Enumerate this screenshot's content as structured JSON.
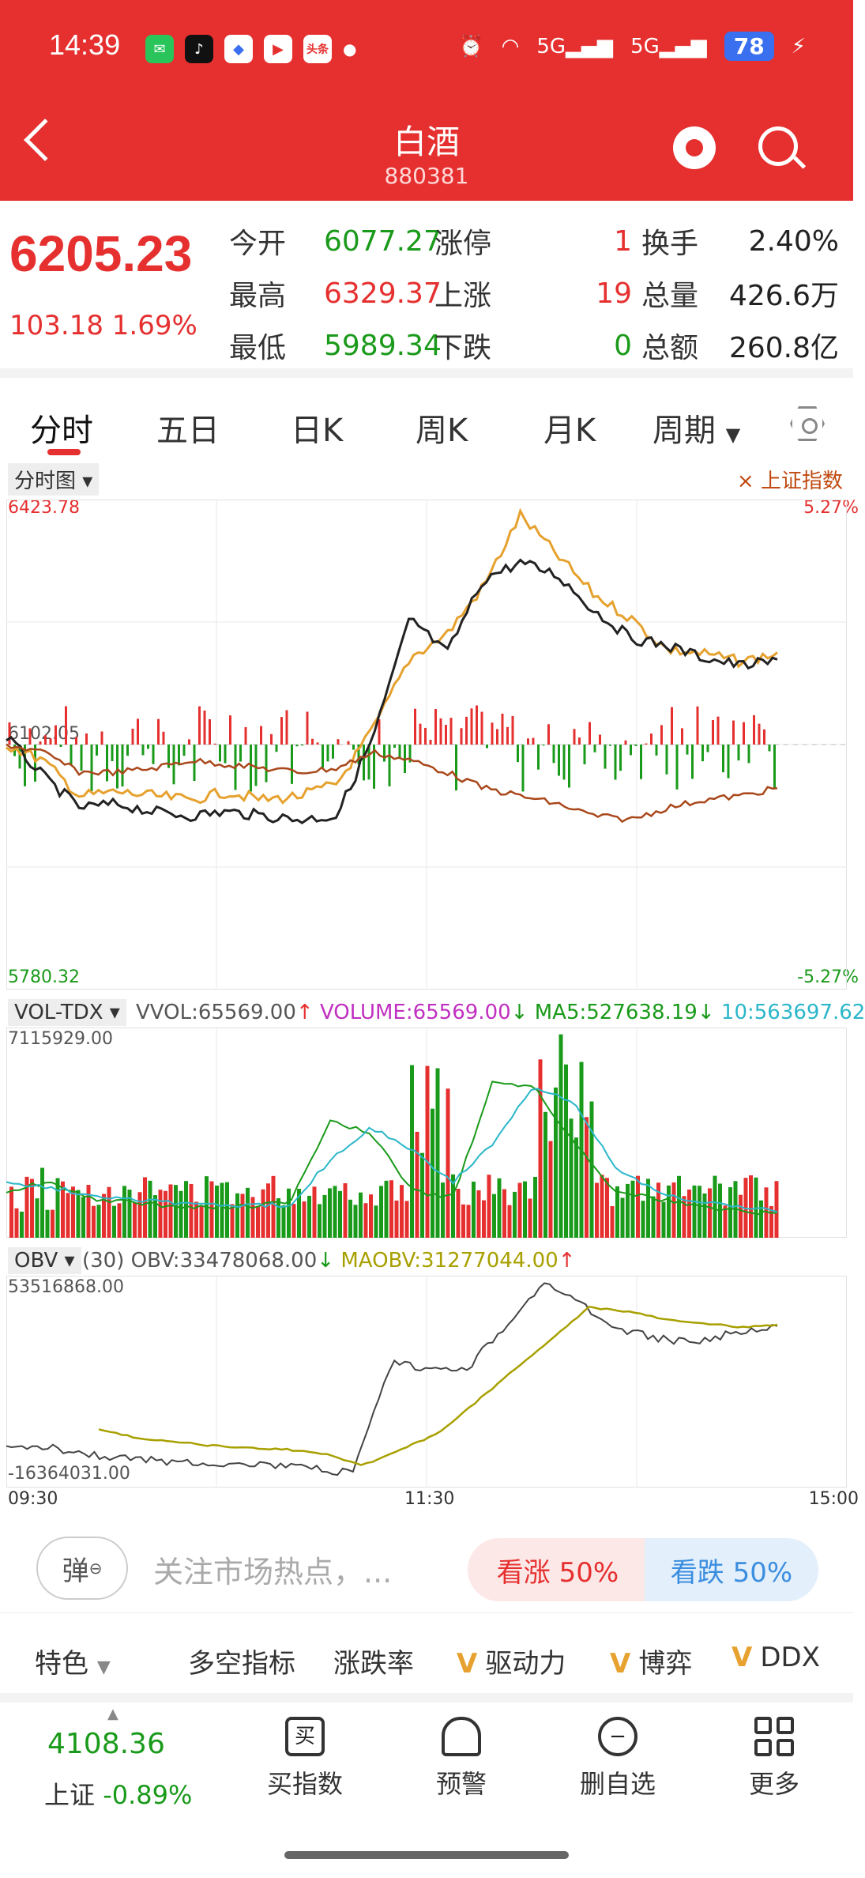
{
  "status_bar": {
    "time": "14:39",
    "apps": [
      "wechat-icon",
      "tiktok-icon",
      "browser-icon",
      "video-icon",
      "toutiao-icon"
    ],
    "toutiao_label": "头条",
    "signal1": "5G",
    "signal2": "5G",
    "battery": "78"
  },
  "nav": {
    "title": "白酒",
    "code": "880381"
  },
  "quote": {
    "price": "6205.23",
    "change": "103.18  1.69%",
    "open_label": "今开",
    "open": "6077.27",
    "high_label": "最高",
    "high": "6329.37",
    "low_label": "最低",
    "low": "5989.34",
    "limit_up_label": "涨停",
    "limit_up": "1",
    "rise_label": "上涨",
    "rise": "19",
    "fall_label": "下跌",
    "fall": "0",
    "turnover_label": "换手",
    "turnover": "2.40%",
    "volume_label": "总量",
    "volume": "426.6万",
    "amount_label": "总额",
    "amount": "260.8亿"
  },
  "tabs": [
    "分时",
    "五日",
    "日K",
    "周K",
    "月K",
    "周期"
  ],
  "chart_main": {
    "chip": "分时图",
    "compare": "上证指数",
    "max": "6423.78",
    "max_pct": "5.27%",
    "min": "5780.32",
    "min_pct": "-5.27%",
    "prev": "6102.05"
  },
  "vol": {
    "chip": "VOL-TDX",
    "vvol": "VVOL:65569.00",
    "volume": "VOLUME:65569.00",
    "ma5": "MA5:527638.19",
    "ma10": "10:563697.62",
    "max": "7115929.00"
  },
  "obv": {
    "chip": "OBV",
    "period": "(30)",
    "obv": "OBV:33478068.00",
    "maobv": "MAOBV:31277044.00",
    "max": "53516868.00",
    "min": "-16364031.00",
    "t_start": "09:30",
    "t_mid": "11:30",
    "t_end": "15:00"
  },
  "sentiment": {
    "danmu": "弹",
    "placeholder": "关注市场热点，...",
    "bull": "看涨 50%",
    "bear": "看跌 50%"
  },
  "indicators": [
    "特色",
    "多空指标",
    "涨跌率",
    "驱动力",
    "博弈",
    "DDX"
  ],
  "bottom": {
    "index_value": "4108.36",
    "index_name": "上证",
    "index_change": "-0.89%",
    "buy": "买指数",
    "alert": "预警",
    "remove": "删自选",
    "more": "更多",
    "buy_glyph": "买"
  },
  "colors": {
    "up": "#e5302f",
    "down": "#1a9a1a",
    "accent": "#e5302f"
  }
}
